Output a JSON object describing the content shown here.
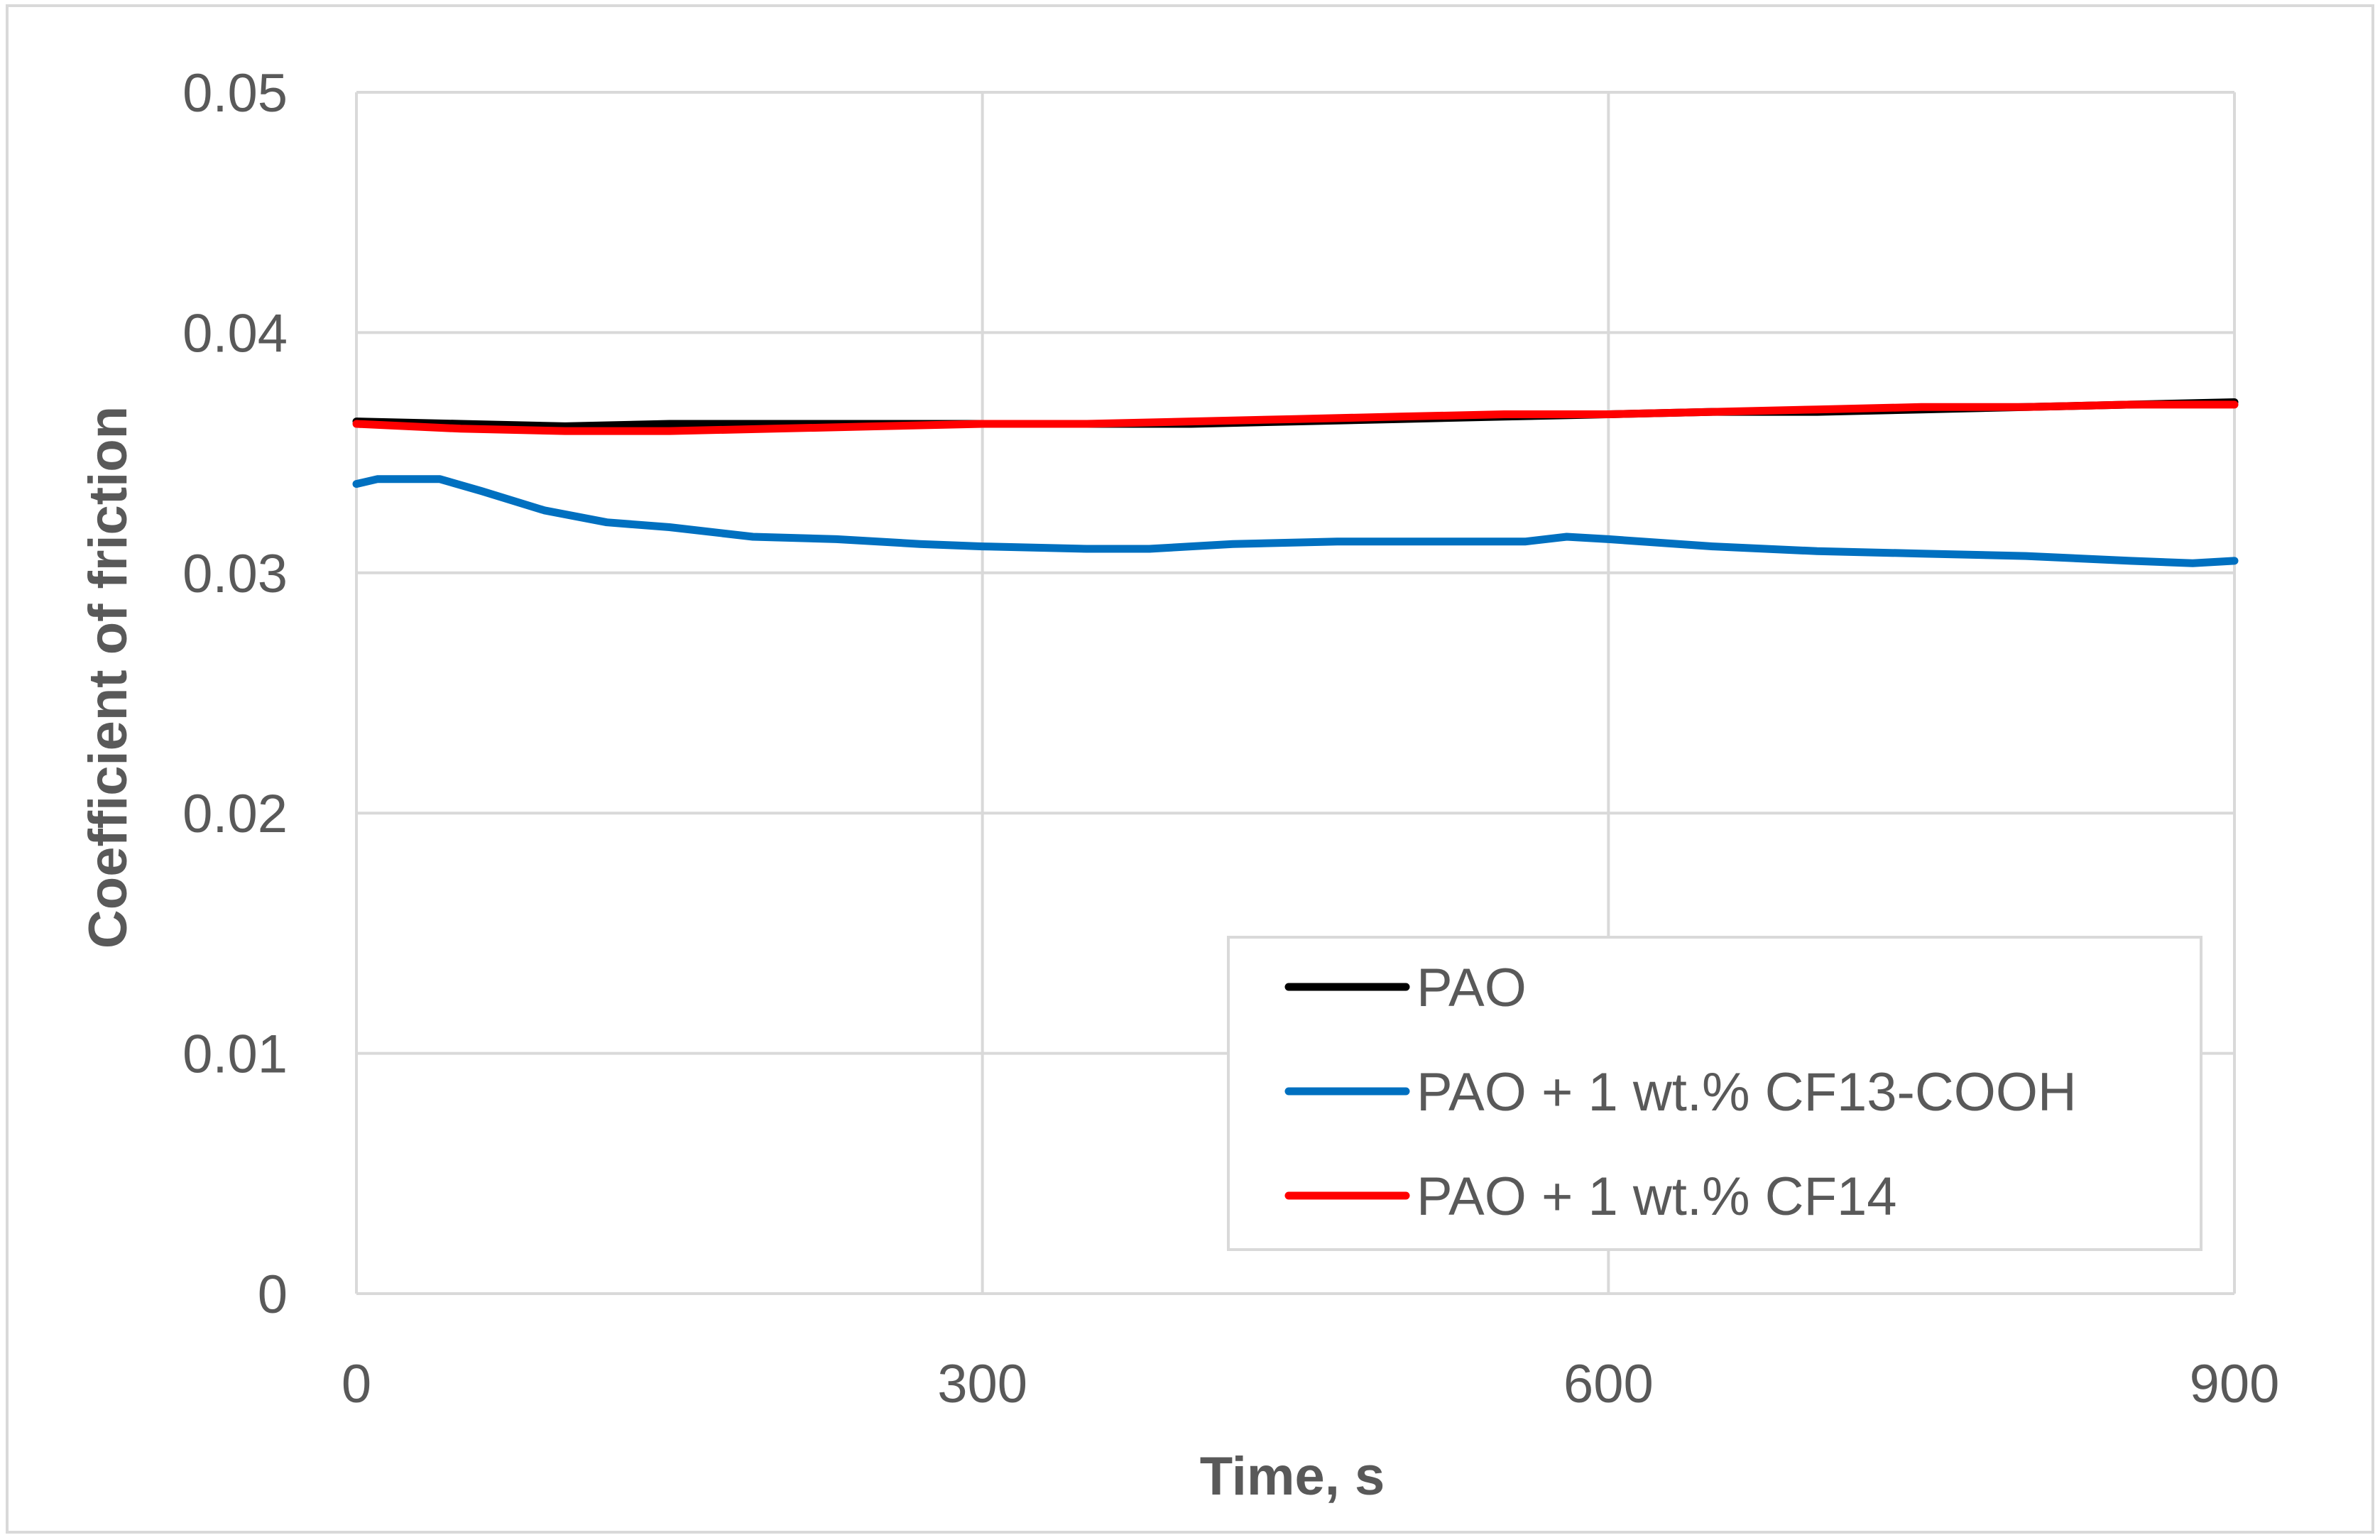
{
  "chart_data": {
    "type": "line",
    "title": "",
    "xlabel": "Time, s",
    "ylabel": "Coefficient of friction",
    "xlim": [
      0,
      900
    ],
    "ylim": [
      0,
      0.05
    ],
    "x_ticks": [
      "0",
      "300",
      "600",
      "900"
    ],
    "y_ticks": [
      "0",
      "0.01",
      "0.02",
      "0.03",
      "0.04",
      "0.05"
    ],
    "grid": true,
    "legend_position": "bottom-right",
    "series": [
      {
        "name": "PAO",
        "color": "#000000",
        "x": [
          0,
          50,
          100,
          150,
          200,
          250,
          300,
          350,
          400,
          450,
          500,
          550,
          600,
          650,
          700,
          750,
          800,
          850,
          900
        ],
        "y": [
          0.0363,
          0.0362,
          0.0361,
          0.0362,
          0.0362,
          0.0362,
          0.0362,
          0.0362,
          0.0362,
          0.0363,
          0.0364,
          0.0365,
          0.0366,
          0.0367,
          0.0367,
          0.0368,
          0.0369,
          0.037,
          0.0371
        ]
      },
      {
        "name": "PAO + 1 wt.% CF13-COOH",
        "color": "#0070C0",
        "x": [
          0,
          10,
          25,
          40,
          60,
          90,
          120,
          150,
          190,
          230,
          270,
          300,
          350,
          380,
          420,
          470,
          500,
          540,
          560,
          580,
          600,
          650,
          700,
          750,
          800,
          850,
          880,
          900
        ],
        "y": [
          0.0337,
          0.0339,
          0.0339,
          0.0339,
          0.0334,
          0.0326,
          0.0321,
          0.0319,
          0.0315,
          0.0314,
          0.0312,
          0.0311,
          0.031,
          0.031,
          0.0312,
          0.0313,
          0.0313,
          0.0313,
          0.0313,
          0.0315,
          0.0314,
          0.0311,
          0.0309,
          0.0308,
          0.0307,
          0.0305,
          0.0304,
          0.0305
        ]
      },
      {
        "name": "PAO + 1 wt.% CF14",
        "color": "#FF0000",
        "x": [
          0,
          50,
          100,
          150,
          200,
          250,
          300,
          350,
          400,
          450,
          500,
          550,
          600,
          650,
          700,
          750,
          800,
          850,
          900
        ],
        "y": [
          0.0362,
          0.036,
          0.0359,
          0.0359,
          0.036,
          0.0361,
          0.0362,
          0.0362,
          0.0363,
          0.0364,
          0.0365,
          0.0366,
          0.0366,
          0.0367,
          0.0368,
          0.0369,
          0.0369,
          0.037,
          0.037
        ]
      }
    ]
  }
}
